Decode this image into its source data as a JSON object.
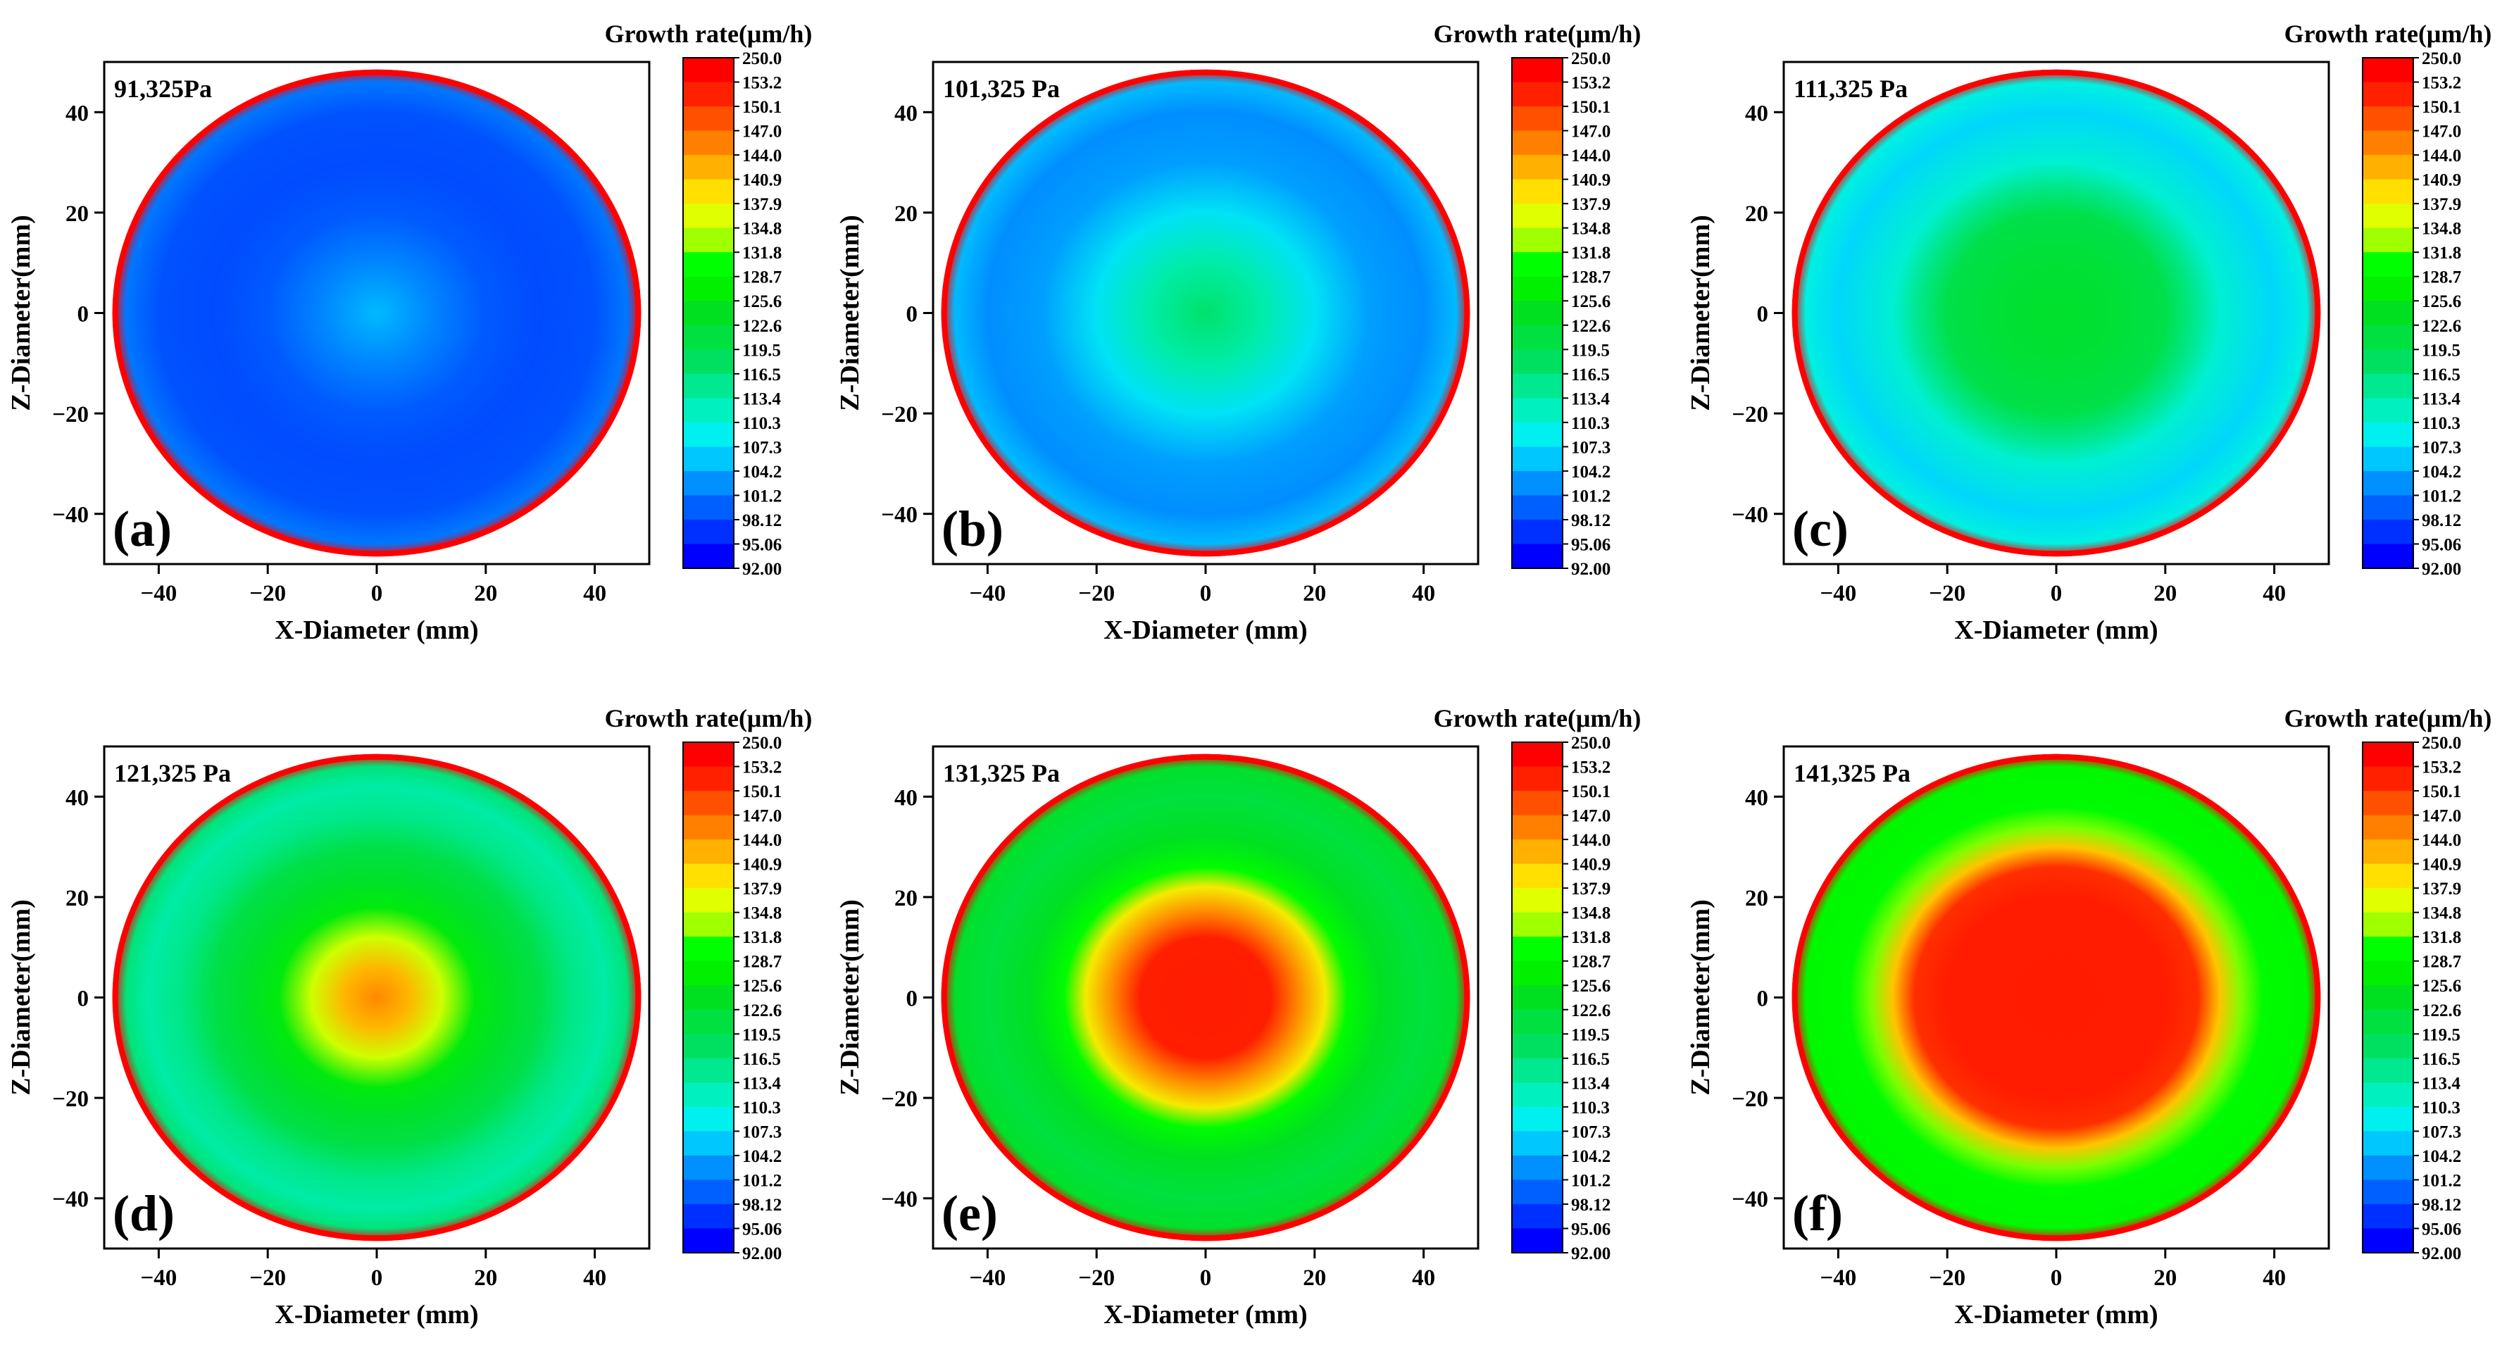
{
  "chart_data": [
    {
      "type": "heatmap",
      "panel_label": "(a)",
      "pressure_label": "91,325Pa",
      "pressure_pa": 91325,
      "xlabel": "X-Diameter (mm)",
      "ylabel": "Z-Diameter(mm)",
      "colorbar_title": "Growth rate(μm/h)",
      "xlim": [
        -50,
        50
      ],
      "ylim": [
        -50,
        50
      ],
      "xticks": [
        -40,
        -20,
        0,
        20,
        40
      ],
      "yticks": [
        -40,
        -20,
        0,
        20,
        40
      ],
      "xtick_labels": [
        "−40",
        "−20",
        "0",
        "20",
        "40"
      ],
      "ytick_labels": [
        "−40",
        "−20",
        "0",
        "20",
        "40"
      ],
      "disk_radius_mm": 48.5,
      "radial_profile": {
        "r_mm": [
          0,
          10,
          20,
          30,
          40,
          46,
          48.5
        ],
        "growth_rate": [
          104,
          101,
          98,
          97,
          97.5,
          100,
          250
        ]
      }
    },
    {
      "type": "heatmap",
      "panel_label": "(b)",
      "pressure_label": "101,325 Pa",
      "pressure_pa": 101325,
      "xlabel": "X-Diameter (mm)",
      "ylabel": "Z-Diameter(mm)",
      "colorbar_title": "Growth rate(μm/h)",
      "xlim": [
        -50,
        50
      ],
      "ylim": [
        -50,
        50
      ],
      "xticks": [
        -40,
        -20,
        0,
        20,
        40
      ],
      "yticks": [
        -40,
        -20,
        0,
        20,
        40
      ],
      "xtick_labels": [
        "−40",
        "−20",
        "0",
        "20",
        "40"
      ],
      "ytick_labels": [
        "−40",
        "−20",
        "0",
        "20",
        "40"
      ],
      "disk_radius_mm": 48.5,
      "radial_profile": {
        "r_mm": [
          0,
          10,
          20,
          30,
          40,
          46,
          48.5
        ],
        "growth_rate": [
          117,
          113,
          107,
          102.5,
          101.5,
          104,
          250
        ]
      }
    },
    {
      "type": "heatmap",
      "panel_label": "(c)",
      "pressure_label": "111,325 Pa",
      "pressure_pa": 111325,
      "xlabel": "X-Diameter (mm)",
      "ylabel": "Z-Diameter(mm)",
      "colorbar_title": "Growth rate(μm/h)",
      "xlim": [
        -50,
        50
      ],
      "ylim": [
        -50,
        50
      ],
      "xticks": [
        -40,
        -20,
        0,
        20,
        40
      ],
      "yticks": [
        -40,
        -20,
        0,
        20,
        40
      ],
      "xtick_labels": [
        "−40",
        "−20",
        "0",
        "20",
        "40"
      ],
      "ytick_labels": [
        "−40",
        "−20",
        "0",
        "20",
        "40"
      ],
      "disk_radius_mm": 48.5,
      "radial_profile": {
        "r_mm": [
          0,
          10,
          20,
          25,
          30,
          40,
          46,
          48.5
        ],
        "growth_rate": [
          123,
          122,
          120,
          115,
          110,
          106,
          109,
          250
        ]
      }
    },
    {
      "type": "heatmap",
      "panel_label": "(d)",
      "pressure_label": "121,325 Pa",
      "pressure_pa": 121325,
      "xlabel": "X-Diameter (mm)",
      "ylabel": "Z-Diameter(mm)",
      "colorbar_title": "Growth rate(μm/h)",
      "xlim": [
        -50,
        50
      ],
      "ylim": [
        -50,
        50
      ],
      "xticks": [
        -40,
        -20,
        0,
        20,
        40
      ],
      "yticks": [
        -40,
        -20,
        0,
        20,
        40
      ],
      "xtick_labels": [
        "−40",
        "−20",
        "0",
        "20",
        "40"
      ],
      "ytick_labels": [
        "−40",
        "−20",
        "0",
        "20",
        "40"
      ],
      "disk_radius_mm": 48.5,
      "radial_profile": {
        "r_mm": [
          0,
          6,
          12,
          18,
          24,
          30,
          36,
          42,
          46,
          48.5
        ],
        "growth_rate": [
          146,
          143,
          136,
          126,
          123,
          120,
          115,
          113,
          116,
          250
        ]
      }
    },
    {
      "type": "heatmap",
      "panel_label": "(e)",
      "pressure_label": "131,325 Pa",
      "pressure_pa": 131325,
      "xlabel": "X-Diameter (mm)",
      "ylabel": "Z-Diameter(mm)",
      "colorbar_title": "Growth rate(μm/h)",
      "xlim": [
        -50,
        50
      ],
      "ylim": [
        -50,
        50
      ],
      "xticks": [
        -40,
        -20,
        0,
        20,
        40
      ],
      "yticks": [
        -40,
        -20,
        0,
        20,
        40
      ],
      "xtick_labels": [
        "−40",
        "−20",
        "0",
        "20",
        "40"
      ],
      "ytick_labels": [
        "−40",
        "−20",
        "0",
        "20",
        "40"
      ],
      "disk_radius_mm": 48.5,
      "radial_profile": {
        "r_mm": [
          0,
          12,
          17,
          22,
          26,
          32,
          40,
          46,
          48.5
        ],
        "growth_rate": [
          160,
          155,
          146,
          139,
          130,
          124,
          121,
          123,
          250
        ]
      }
    },
    {
      "type": "heatmap",
      "panel_label": "(f)",
      "pressure_label": "141,325 Pa",
      "pressure_pa": 141325,
      "xlabel": "X-Diameter (mm)",
      "ylabel": "Z-Diameter(mm)",
      "colorbar_title": "Growth rate(μm/h)",
      "xlim": [
        -50,
        50
      ],
      "ylim": [
        -50,
        50
      ],
      "xticks": [
        -40,
        -20,
        0,
        20,
        40
      ],
      "yticks": [
        -40,
        -20,
        0,
        20,
        40
      ],
      "xtick_labels": [
        "−40",
        "−20",
        "0",
        "20",
        "40"
      ],
      "ytick_labels": [
        "−40",
        "−20",
        "0",
        "20",
        "40"
      ],
      "disk_radius_mm": 48.5,
      "radial_profile": {
        "r_mm": [
          0,
          20,
          26,
          30,
          34,
          38,
          46,
          48.5
        ],
        "growth_rate": [
          165,
          160,
          152,
          142,
          133,
          130,
          129,
          250
        ]
      }
    }
  ],
  "colorbar": {
    "title": "Growth rate(μm/h)",
    "tick_values": [
      250.0,
      153.2,
      150.1,
      147.0,
      144.0,
      140.9,
      137.9,
      134.8,
      131.8,
      128.7,
      125.6,
      122.6,
      119.5,
      116.5,
      113.4,
      110.3,
      107.3,
      104.2,
      101.2,
      98.12,
      95.06,
      92.0
    ],
    "tick_labels": [
      "250.0",
      "153.2",
      "150.1",
      "147.0",
      "144.0",
      "140.9",
      "137.9",
      "134.8",
      "131.8",
      "128.7",
      "125.6",
      "122.6",
      "119.5",
      "116.5",
      "113.4",
      "110.3",
      "107.3",
      "104.2",
      "101.2",
      "98.12",
      "95.06",
      "92.00"
    ],
    "colors_top_to_bottom": [
      "#ff0000",
      "#ff2000",
      "#ff5000",
      "#ff8000",
      "#ffb000",
      "#ffe000",
      "#e0ff00",
      "#a0ff00",
      "#00ff00",
      "#00f000",
      "#00e020",
      "#00e040",
      "#00e060",
      "#00e890",
      "#00f0c0",
      "#00f0f0",
      "#00c8ff",
      "#0090ff",
      "#0060ff",
      "#0030ff",
      "#0000ff"
    ]
  }
}
